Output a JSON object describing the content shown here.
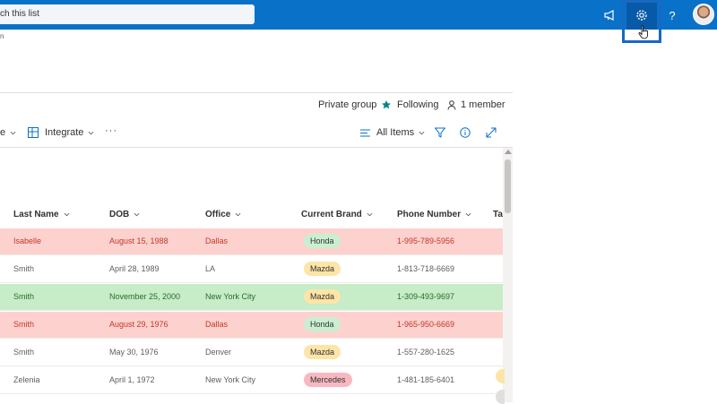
{
  "header": {
    "search_placeholder": "ch this list",
    "icons": [
      "megaphone-icon",
      "gear-icon",
      "help-icon",
      "avatar"
    ],
    "help_glyph": "?"
  },
  "subheader": {
    "text": "n"
  },
  "group": {
    "privacy": "Private group",
    "following": "Following",
    "members": "1 member"
  },
  "commandbar": {
    "left_fragment": "e",
    "integrate": "Integrate",
    "more": "···",
    "view": "All Items"
  },
  "columns": [
    "Last Name",
    "DOB",
    "Office",
    "Current Brand",
    "Phone Number",
    "Ta"
  ],
  "rows": [
    {
      "last": "Isabelle",
      "dob": "August 15, 1988",
      "office": "Dallas",
      "brand": "Honda",
      "phone": "1-995-789-5956",
      "status": "red"
    },
    {
      "last": "Smith",
      "dob": "April 28, 1989",
      "office": "LA",
      "brand": "Mazda",
      "phone": "1-813-718-6669",
      "status": "none"
    },
    {
      "last": "Smith",
      "dob": "November 25, 2000",
      "office": "New York City",
      "brand": "Mazda",
      "phone": "1-309-493-9697",
      "status": "green"
    },
    {
      "last": "Smith",
      "dob": "August 29, 1976",
      "office": "Dallas",
      "brand": "Honda",
      "phone": "1-965-950-6669",
      "status": "red"
    },
    {
      "last": "Smith",
      "dob": "May 30, 1976",
      "office": "Denver",
      "brand": "Mazda",
      "phone": "1-557-280-1625",
      "status": "none"
    },
    {
      "last": "Zelenia",
      "dob": "April 1, 1972",
      "office": "New York City",
      "brand": "Mercedes",
      "phone": "1-481-185-6401",
      "status": "none"
    }
  ],
  "colors": {
    "accent": "#0a71c9",
    "row_red": "#fdd1cd",
    "row_green": "#c6ecc8",
    "text_red": "#c0392b",
    "text_green": "#2d6a2f",
    "pill_honda": "#c9efd0",
    "pill_mazda": "#fde5a8",
    "pill_mercedes": "#f8b8c2"
  }
}
